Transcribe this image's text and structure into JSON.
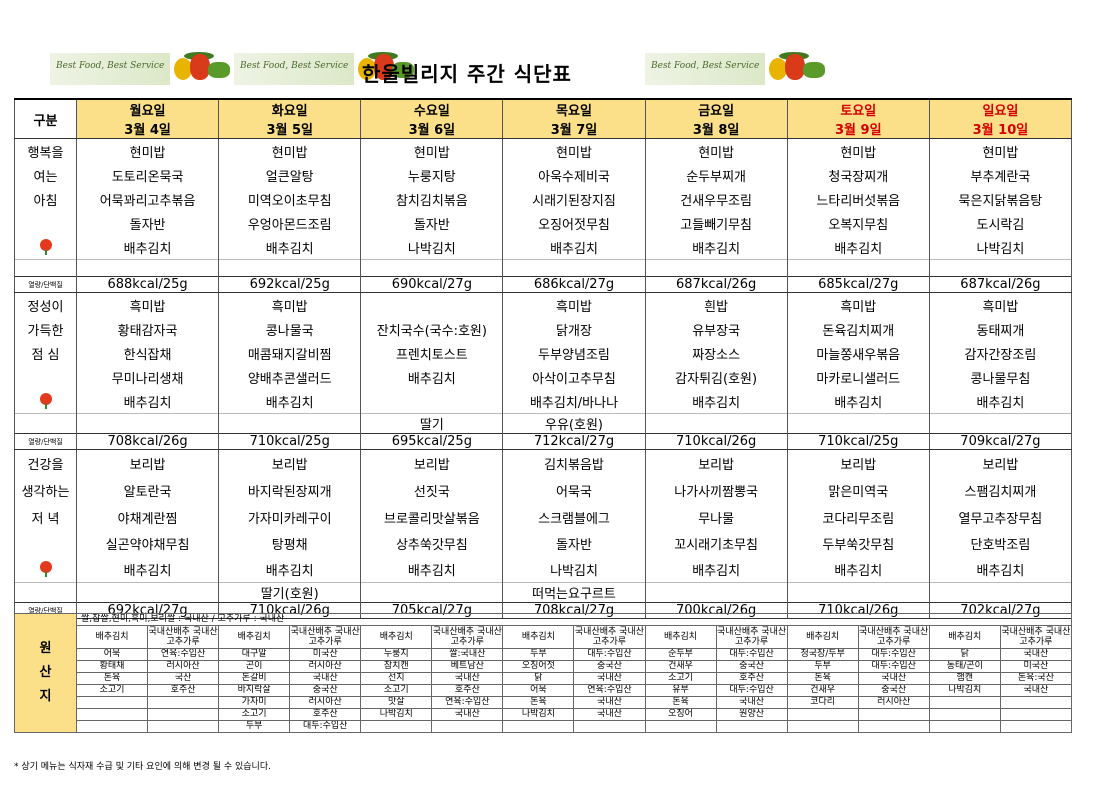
{
  "header": {
    "title": "한울빌리지 주간 식단표",
    "slogan": "Best Food, Best Service"
  },
  "grid": {
    "gubun": "구분",
    "days": [
      {
        "name": "월요일",
        "date": "3월 4일",
        "weekend": false
      },
      {
        "name": "화요일",
        "date": "3월 5일",
        "weekend": false
      },
      {
        "name": "수요일",
        "date": "3월 6일",
        "weekend": false
      },
      {
        "name": "목요일",
        "date": "3월 7일",
        "weekend": false
      },
      {
        "name": "금요일",
        "date": "3월 8일",
        "weekend": false
      },
      {
        "name": "토요일",
        "date": "3월 9일",
        "weekend": true
      },
      {
        "name": "일요일",
        "date": "3월 10일",
        "weekend": true
      }
    ],
    "kcal_label": "열량/단백질",
    "breakfast": {
      "labels": [
        "행복을",
        "여는",
        "아침"
      ],
      "rows": [
        [
          "현미밥",
          "현미밥",
          "현미밥",
          "현미밥",
          "현미밥",
          "현미밥",
          "현미밥"
        ],
        [
          "도토리온묵국",
          "얼큰알탕",
          "누룽지탕",
          "아욱수제비국",
          "순두부찌개",
          "청국장찌개",
          "부추계란국"
        ],
        [
          "어묵꽈리고추볶음",
          "미역오이초무침",
          "참치김치볶음",
          "시래기된장지짐",
          "건새우무조림",
          "느타리버섯볶음",
          "묵은지닭볶음탕"
        ],
        [
          "돌자반",
          "우엉아몬드조림",
          "돌자반",
          "오징어젓무침",
          "고들빼기무침",
          "오복지무침",
          "도시락김"
        ],
        [
          "배추김치",
          "배추김치",
          "나박김치",
          "배추김치",
          "배추김치",
          "배추김치",
          "나박김치"
        ]
      ],
      "extra": [
        "",
        "",
        "",
        "",
        "",
        "",
        ""
      ],
      "kcal": [
        "688kcal/25g",
        "692kcal/25g",
        "690kcal/27g",
        "686kcal/27g",
        "687kcal/26g",
        "685kcal/27g",
        "687kcal/26g"
      ]
    },
    "lunch": {
      "labels": [
        "정성이",
        "가득한",
        "점 심"
      ],
      "rows": [
        [
          "흑미밥",
          "흑미밥",
          "",
          "흑미밥",
          "흰밥",
          "흑미밥",
          "흑미밥"
        ],
        [
          "황태감자국",
          "콩나물국",
          "잔치국수(국수:호원)",
          "닭개장",
          "유부장국",
          "돈육김치찌개",
          "동태찌개"
        ],
        [
          "한식잡채",
          "매콤돼지갈비찜",
          "프렌치토스트",
          "두부양념조림",
          "짜장소스",
          "마늘쫑새우볶음",
          "감자간장조림"
        ],
        [
          "무미나리생채",
          "양배추콘샐러드",
          "배추김치",
          "아삭이고추무침",
          "감자튀김(호원)",
          "마카로니샐러드",
          "콩나물무침"
        ],
        [
          "배추김치",
          "배추김치",
          "",
          "배추김치/바나나",
          "배추김치",
          "배추김치",
          "배추김치"
        ]
      ],
      "extra": [
        "",
        "",
        "딸기",
        "우유(호원)",
        "",
        "",
        ""
      ],
      "kcal": [
        "708kcal/26g",
        "710kcal/25g",
        "695kcal/25g",
        "712kcal/27g",
        "710kcal/26g",
        "710kcal/25g",
        "709kcal/27g"
      ]
    },
    "dinner": {
      "labels": [
        "건강을",
        "생각하는",
        "저 녁"
      ],
      "rows": [
        [
          "보리밥",
          "보리밥",
          "보리밥",
          "김치볶음밥",
          "보리밥",
          "보리밥",
          "보리밥"
        ],
        [
          "알토란국",
          "바지락된장찌개",
          "선짓국",
          "어묵국",
          "나가사끼짬뽕국",
          "맑은미역국",
          "스팸김치찌개"
        ],
        [
          "야채계란찜",
          "가자미카레구이",
          "브로콜리맛살볶음",
          "스크램블에그",
          "무나물",
          "코다리무조림",
          "열무고추장무침"
        ],
        [
          "실곤약야채무침",
          "탕평채",
          "상추쑥갓무침",
          "돌자반",
          "꼬시래기초무침",
          "두부쑥갓무침",
          "단호박조림"
        ],
        [
          "배추김치",
          "배추김치",
          "배추김치",
          "나박김치",
          "배추김치",
          "배추김치",
          "배추김치"
        ]
      ],
      "extra": [
        "",
        "딸기(호원)",
        "",
        "떠먹는요구르트",
        "",
        "",
        ""
      ],
      "kcal": [
        "692kcal/27g",
        "710kcal/26g",
        "705kcal/27g",
        "708kcal/27g",
        "700kcal/26g",
        "710kcal/26g",
        "702kcal/27g"
      ]
    }
  },
  "origin": {
    "label": [
      "원",
      "산",
      "지"
    ],
    "note": "쌀,찹쌀,현미,흑미,보리쌀 : 국내산 / 고추가루 : 국내산",
    "head": [
      "배추김치",
      "국내산배추 국내산고추가루",
      "배추김치",
      "국내산배추 국내산고추가루",
      "배추김치",
      "국내산배추 국내산고추가루",
      "배추김치",
      "국내산배추 국내산고추가루",
      "배추김치",
      "국내산배추 국내산고추가루",
      "배추김치",
      "국내산배추 국내산고추가루",
      "배추김치",
      "국내산배추 국내산고추가루"
    ],
    "rows": [
      [
        "어묵",
        "연육:수입산",
        "대구알",
        "미국산",
        "누룽지",
        "쌀:국내산",
        "두부",
        "대두:수입산",
        "순두부",
        "대두:수입산",
        "청국장/두부",
        "대두:수입산",
        "닭",
        "국내산"
      ],
      [
        "황태채",
        "러시아산",
        "곤이",
        "러시아산",
        "참치캔",
        "베트남산",
        "오징어젓",
        "중국산",
        "건새우",
        "중국산",
        "두부",
        "대두:수입산",
        "동태/곤이",
        "미국산"
      ],
      [
        "돈육",
        "국산",
        "돈갈비",
        "국내산",
        "선지",
        "국내산",
        "닭",
        "국내산",
        "소고기",
        "호주산",
        "돈육",
        "국내산",
        "햄캔",
        "돈육:국산"
      ],
      [
        "소고기",
        "호주산",
        "바지락살",
        "중국산",
        "소고기",
        "호주산",
        "어묵",
        "연육:수입산",
        "유부",
        "대두:수입산",
        "건새우",
        "중국산",
        "나박김치",
        "국내산"
      ],
      [
        "",
        "",
        "가자미",
        "러시아산",
        "맛살",
        "연육:수입산",
        "돈육",
        "국내산",
        "돈육",
        "국내산",
        "코다리",
        "러시아산",
        "",
        ""
      ],
      [
        "",
        "",
        "소고기",
        "호주산",
        "나박김치",
        "국내산",
        "나박김치",
        "국내산",
        "오징어",
        "원양산",
        "",
        "",
        "",
        ""
      ],
      [
        "",
        "",
        "두부",
        "대두:수입산",
        "",
        "",
        "",
        "",
        "",
        "",
        "",
        "",
        "",
        ""
      ]
    ]
  },
  "footnote": "* 상기 메뉴는 식자재 수급 및 기타 요인에 의해 변경 될 수 있습니다."
}
